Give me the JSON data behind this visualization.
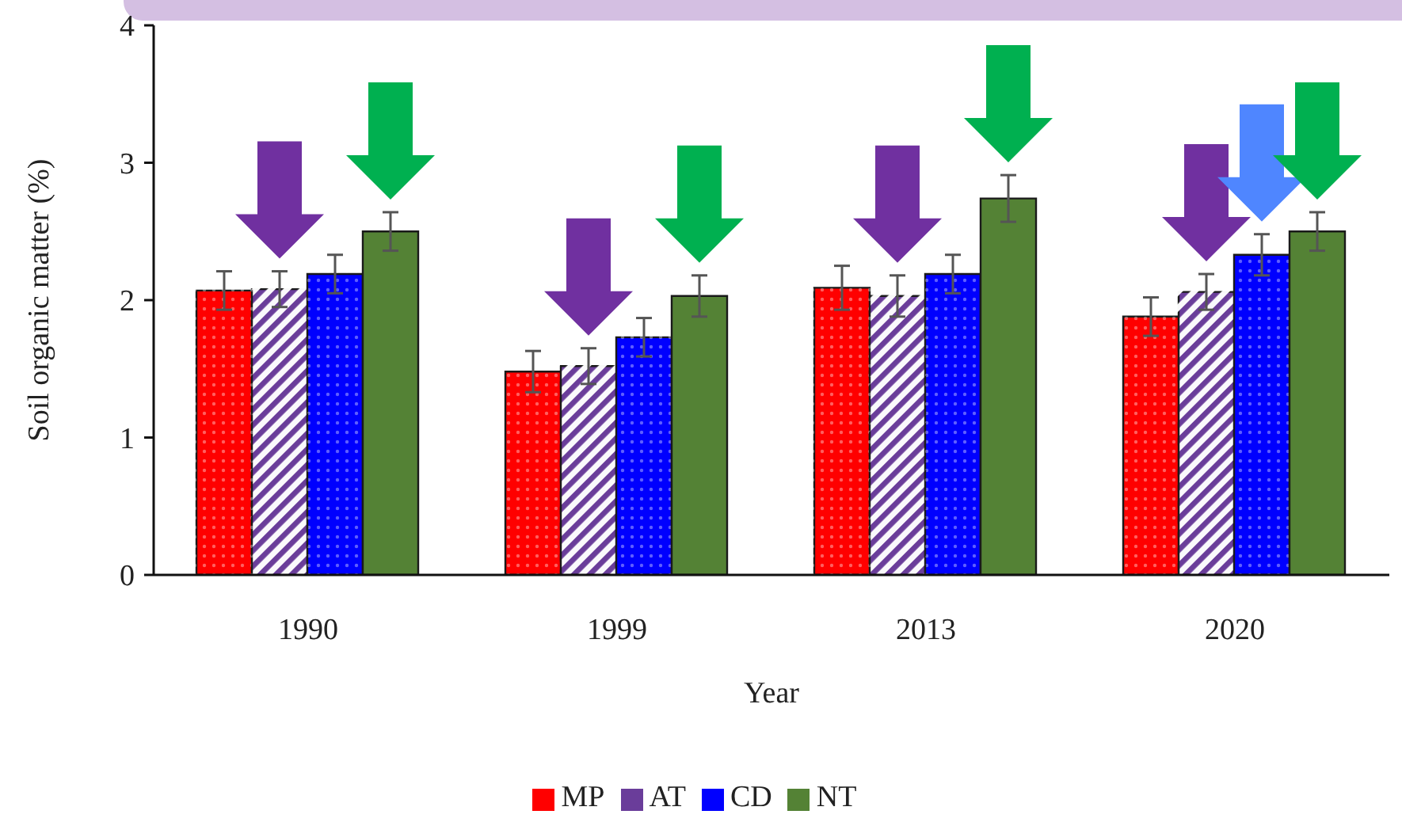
{
  "chart_data": {
    "type": "bar",
    "xlabel": "Year",
    "ylabel": "Soil organic matter (%)",
    "categories": [
      "1990",
      "1999",
      "2013",
      "2020"
    ],
    "series": [
      {
        "name": "MP",
        "color": "#ff0000",
        "values": [
          2.07,
          1.48,
          2.09,
          1.88
        ],
        "errors": [
          0.14,
          0.15,
          0.16,
          0.14
        ]
      },
      {
        "name": "AT",
        "color": "#6a3d9a",
        "values": [
          2.08,
          1.52,
          2.03,
          2.06
        ],
        "errors": [
          0.13,
          0.13,
          0.15,
          0.13
        ]
      },
      {
        "name": "CD",
        "color": "#0000ff",
        "values": [
          2.19,
          1.73,
          2.19,
          2.33
        ],
        "errors": [
          0.14,
          0.14,
          0.14,
          0.15
        ]
      },
      {
        "name": "NT",
        "color": "#548235",
        "values": [
          2.5,
          2.03,
          2.74,
          2.5
        ],
        "errors": [
          0.14,
          0.15,
          0.17,
          0.14
        ]
      }
    ],
    "ylim": [
      0,
      4
    ],
    "yticks": [
      0,
      1,
      2,
      3,
      4
    ],
    "legend": "bottom"
  }
}
